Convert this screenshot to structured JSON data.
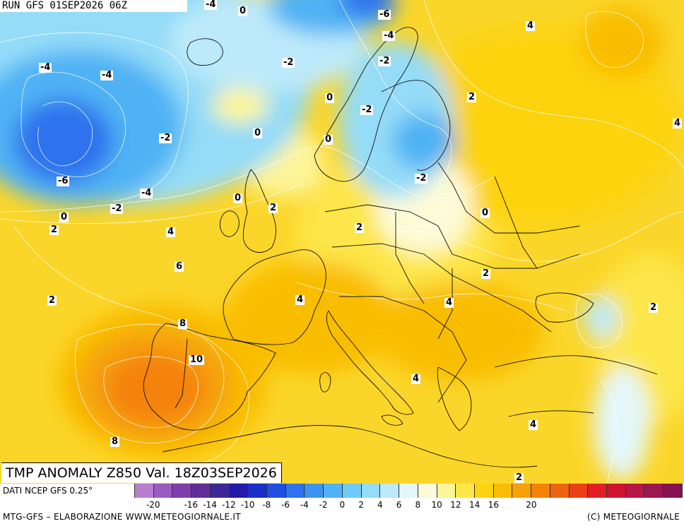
{
  "header": {
    "run": "RUN GFS 01SEP2026 06Z"
  },
  "title": "TMP ANOMALY Z850 Val. 18Z03SEP2026",
  "footer": {
    "data_source": "DATI NCEP GFS 0.25°",
    "credit_left": "MTG-GFS – ELABORAZIONE WWW.METEOGIORNALE.IT",
    "credit_right": "(C) METEOGIORNALE"
  },
  "legend": {
    "colors": [
      "#b87fd0",
      "#9a5cc0",
      "#7d3fae",
      "#602d97",
      "#3c2797",
      "#2419a8",
      "#1a2fc8",
      "#1f4fe0",
      "#2f72ee",
      "#3c92f0",
      "#4fb2f4",
      "#6fcaf6",
      "#94dcf8",
      "#bdeafa",
      "#e4f7fb",
      "#fdfbd8",
      "#fdf59a",
      "#fde64a",
      "#fcd30f",
      "#f9bd06",
      "#f6a107",
      "#f48208",
      "#ef6210",
      "#ea4016",
      "#e31e22",
      "#cf1430",
      "#b81645",
      "#9f1550",
      "#86114f"
    ],
    "ticks": [
      "-20",
      "-18",
      "-16",
      "-14",
      "-12",
      "-10",
      "-8",
      "-6",
      "-4",
      "-2",
      "0",
      "2",
      "4",
      "6",
      "8",
      "10",
      "12",
      "14",
      "16",
      "18",
      "20"
    ],
    "tick_labels_shown": [
      "-20",
      "-16",
      "-14",
      "-12",
      "-10",
      "-8",
      "-6",
      "-4",
      "-2",
      "0",
      "2",
      "4",
      "6",
      "8",
      "10",
      "12",
      "14",
      "16",
      "20"
    ]
  },
  "contour_labels": [
    {
      "name": "label-minus4-top",
      "text": "-4"
    },
    {
      "name": "label-0-top",
      "text": "0"
    },
    {
      "name": "label-minus6-north",
      "text": "-6"
    },
    {
      "name": "label-minus4-scand",
      "text": "-4"
    },
    {
      "name": "label-4-russia",
      "text": "4"
    },
    {
      "name": "label-minus2-scand",
      "text": "-2"
    },
    {
      "name": "label-minus4-west",
      "text": "-4"
    },
    {
      "name": "label-minus4-atl",
      "text": "-4"
    },
    {
      "name": "label-minus2-nsea",
      "text": "-2"
    },
    {
      "name": "label-0-norway",
      "text": "0"
    },
    {
      "name": "label-2-finland",
      "text": "2"
    },
    {
      "name": "label-minus2-sweden",
      "text": "-2"
    },
    {
      "name": "label-0-iceland",
      "text": "0"
    },
    {
      "name": "label-minus2-atl",
      "text": "-2"
    },
    {
      "name": "label-0-skag",
      "text": "0"
    },
    {
      "name": "label-4-east",
      "text": "4"
    },
    {
      "name": "label-minus6-atl",
      "text": "-6"
    },
    {
      "name": "label-minus2-baltic",
      "text": "-2"
    },
    {
      "name": "label-minus4-atl2",
      "text": "-4"
    },
    {
      "name": "label-0-uk",
      "text": "0"
    },
    {
      "name": "label-minus2-atl2",
      "text": "-2"
    },
    {
      "name": "label-2-nsea",
      "text": "2"
    },
    {
      "name": "label-0-poland",
      "text": "0"
    },
    {
      "name": "label-0-atl",
      "text": "0"
    },
    {
      "name": "label-2-atl",
      "text": "2"
    },
    {
      "name": "label-4-atl",
      "text": "4"
    },
    {
      "name": "label-2-germany",
      "text": "2"
    },
    {
      "name": "label-6-biscay",
      "text": "6"
    },
    {
      "name": "label-2-ukraine",
      "text": "2"
    },
    {
      "name": "label-2-atl-south",
      "text": "2"
    },
    {
      "name": "label-4-france",
      "text": "4"
    },
    {
      "name": "label-4-balkan",
      "text": "4"
    },
    {
      "name": "label-2-caspian",
      "text": "2"
    },
    {
      "name": "label-8-spain",
      "text": "8"
    },
    {
      "name": "label-10-iberia",
      "text": "10"
    },
    {
      "name": "label-4-italy",
      "text": "4"
    },
    {
      "name": "label-4-aegean",
      "text": "4"
    },
    {
      "name": "label-8-atl",
      "text": "8"
    },
    {
      "name": "label-2-africa",
      "text": "2"
    }
  ]
}
